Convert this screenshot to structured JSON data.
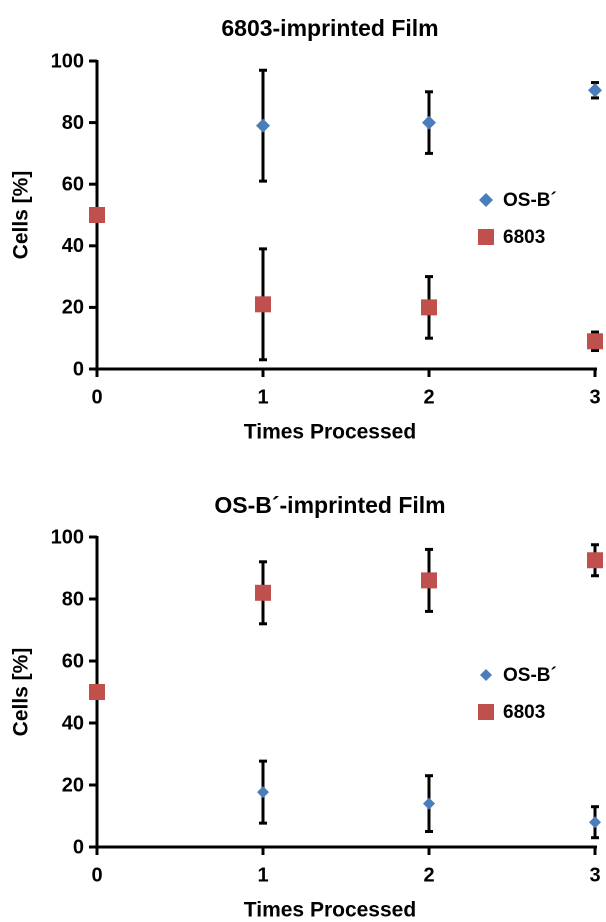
{
  "chart_data": [
    {
      "type": "scatter",
      "title": "6803-imprinted Film",
      "x_label": "Times Processed",
      "y_label": "Cells [%]",
      "xlim": [
        0,
        3
      ],
      "xticks": [
        0,
        1,
        2,
        3
      ],
      "ylim": [
        0,
        100
      ],
      "yticks": [
        0,
        20,
        40,
        60,
        80,
        100
      ],
      "series": [
        {
          "name": "OS-B´",
          "color": "#4a7ebb",
          "marker": "diamond",
          "x": [
            0,
            1,
            2,
            3
          ],
          "values": [
            50,
            79,
            80,
            90.5
          ],
          "errors": [
            0,
            18,
            10,
            2.5
          ]
        },
        {
          "name": "6803",
          "color": "#c0504d",
          "marker": "square",
          "x": [
            0,
            1,
            2,
            3
          ],
          "values": [
            50,
            21,
            20,
            9
          ],
          "errors": [
            0,
            18,
            10,
            3
          ]
        }
      ]
    },
    {
      "type": "scatter",
      "title": "OS-B´-imprinted Film",
      "x_label": "Times Processed",
      "y_label": "Cells [%]",
      "xlim": [
        0,
        3
      ],
      "xticks": [
        0,
        1,
        2,
        3
      ],
      "ylim": [
        0,
        100
      ],
      "yticks": [
        0,
        20,
        40,
        60,
        80,
        100
      ],
      "series": [
        {
          "name": "OS-B´",
          "color": "#4a7ebb",
          "marker": "diamond",
          "x": [
            0,
            1,
            2,
            3
          ],
          "values": [
            50,
            17.7,
            14,
            8
          ],
          "errors": [
            0,
            10,
            9,
            5
          ]
        },
        {
          "name": "6803",
          "color": "#c0504d",
          "marker": "square",
          "x": [
            0,
            1,
            2,
            3
          ],
          "values": [
            50,
            82,
            86,
            92.5
          ],
          "errors": [
            0,
            10,
            10,
            5
          ]
        }
      ]
    }
  ]
}
